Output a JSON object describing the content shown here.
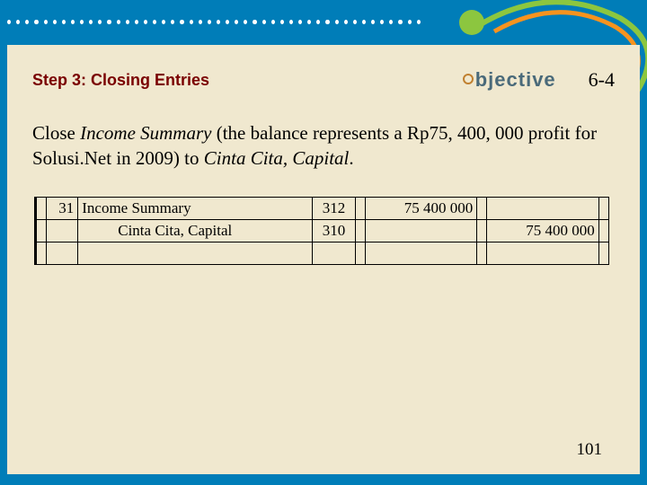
{
  "decor": {
    "dot_count": 46,
    "dot_color": "#ffffff",
    "bg_blue": "#007db8",
    "swirl_colors": {
      "outer": "#8cc63f",
      "inner": "#f7931e"
    }
  },
  "content": {
    "bg": "#f0e8cf",
    "step_title": "Step 3:  Closing Entries",
    "objective_label": "bjective",
    "objective_number": "6-4",
    "body_html": "Close <span class='ital'>Income Summary</span> (the balance represents a Rp75, 400, 000 profit for Solusi.Net in 2009) to <span class='ital'>Cinta Cita, Capital</span>.",
    "page_number": "101"
  },
  "ledger": {
    "rows": [
      {
        "date": "31",
        "desc": "Income Summary",
        "indent": false,
        "code": "312",
        "debit": "75 400 000",
        "credit": ""
      },
      {
        "date": "",
        "desc": "Cinta Cita, Capital",
        "indent": true,
        "code": "310",
        "debit": "",
        "credit": "75 400 000"
      },
      {
        "date": "",
        "desc": "",
        "indent": false,
        "code": "",
        "debit": "",
        "credit": ""
      }
    ],
    "font": "Times New Roman",
    "border_color": "#000000"
  }
}
